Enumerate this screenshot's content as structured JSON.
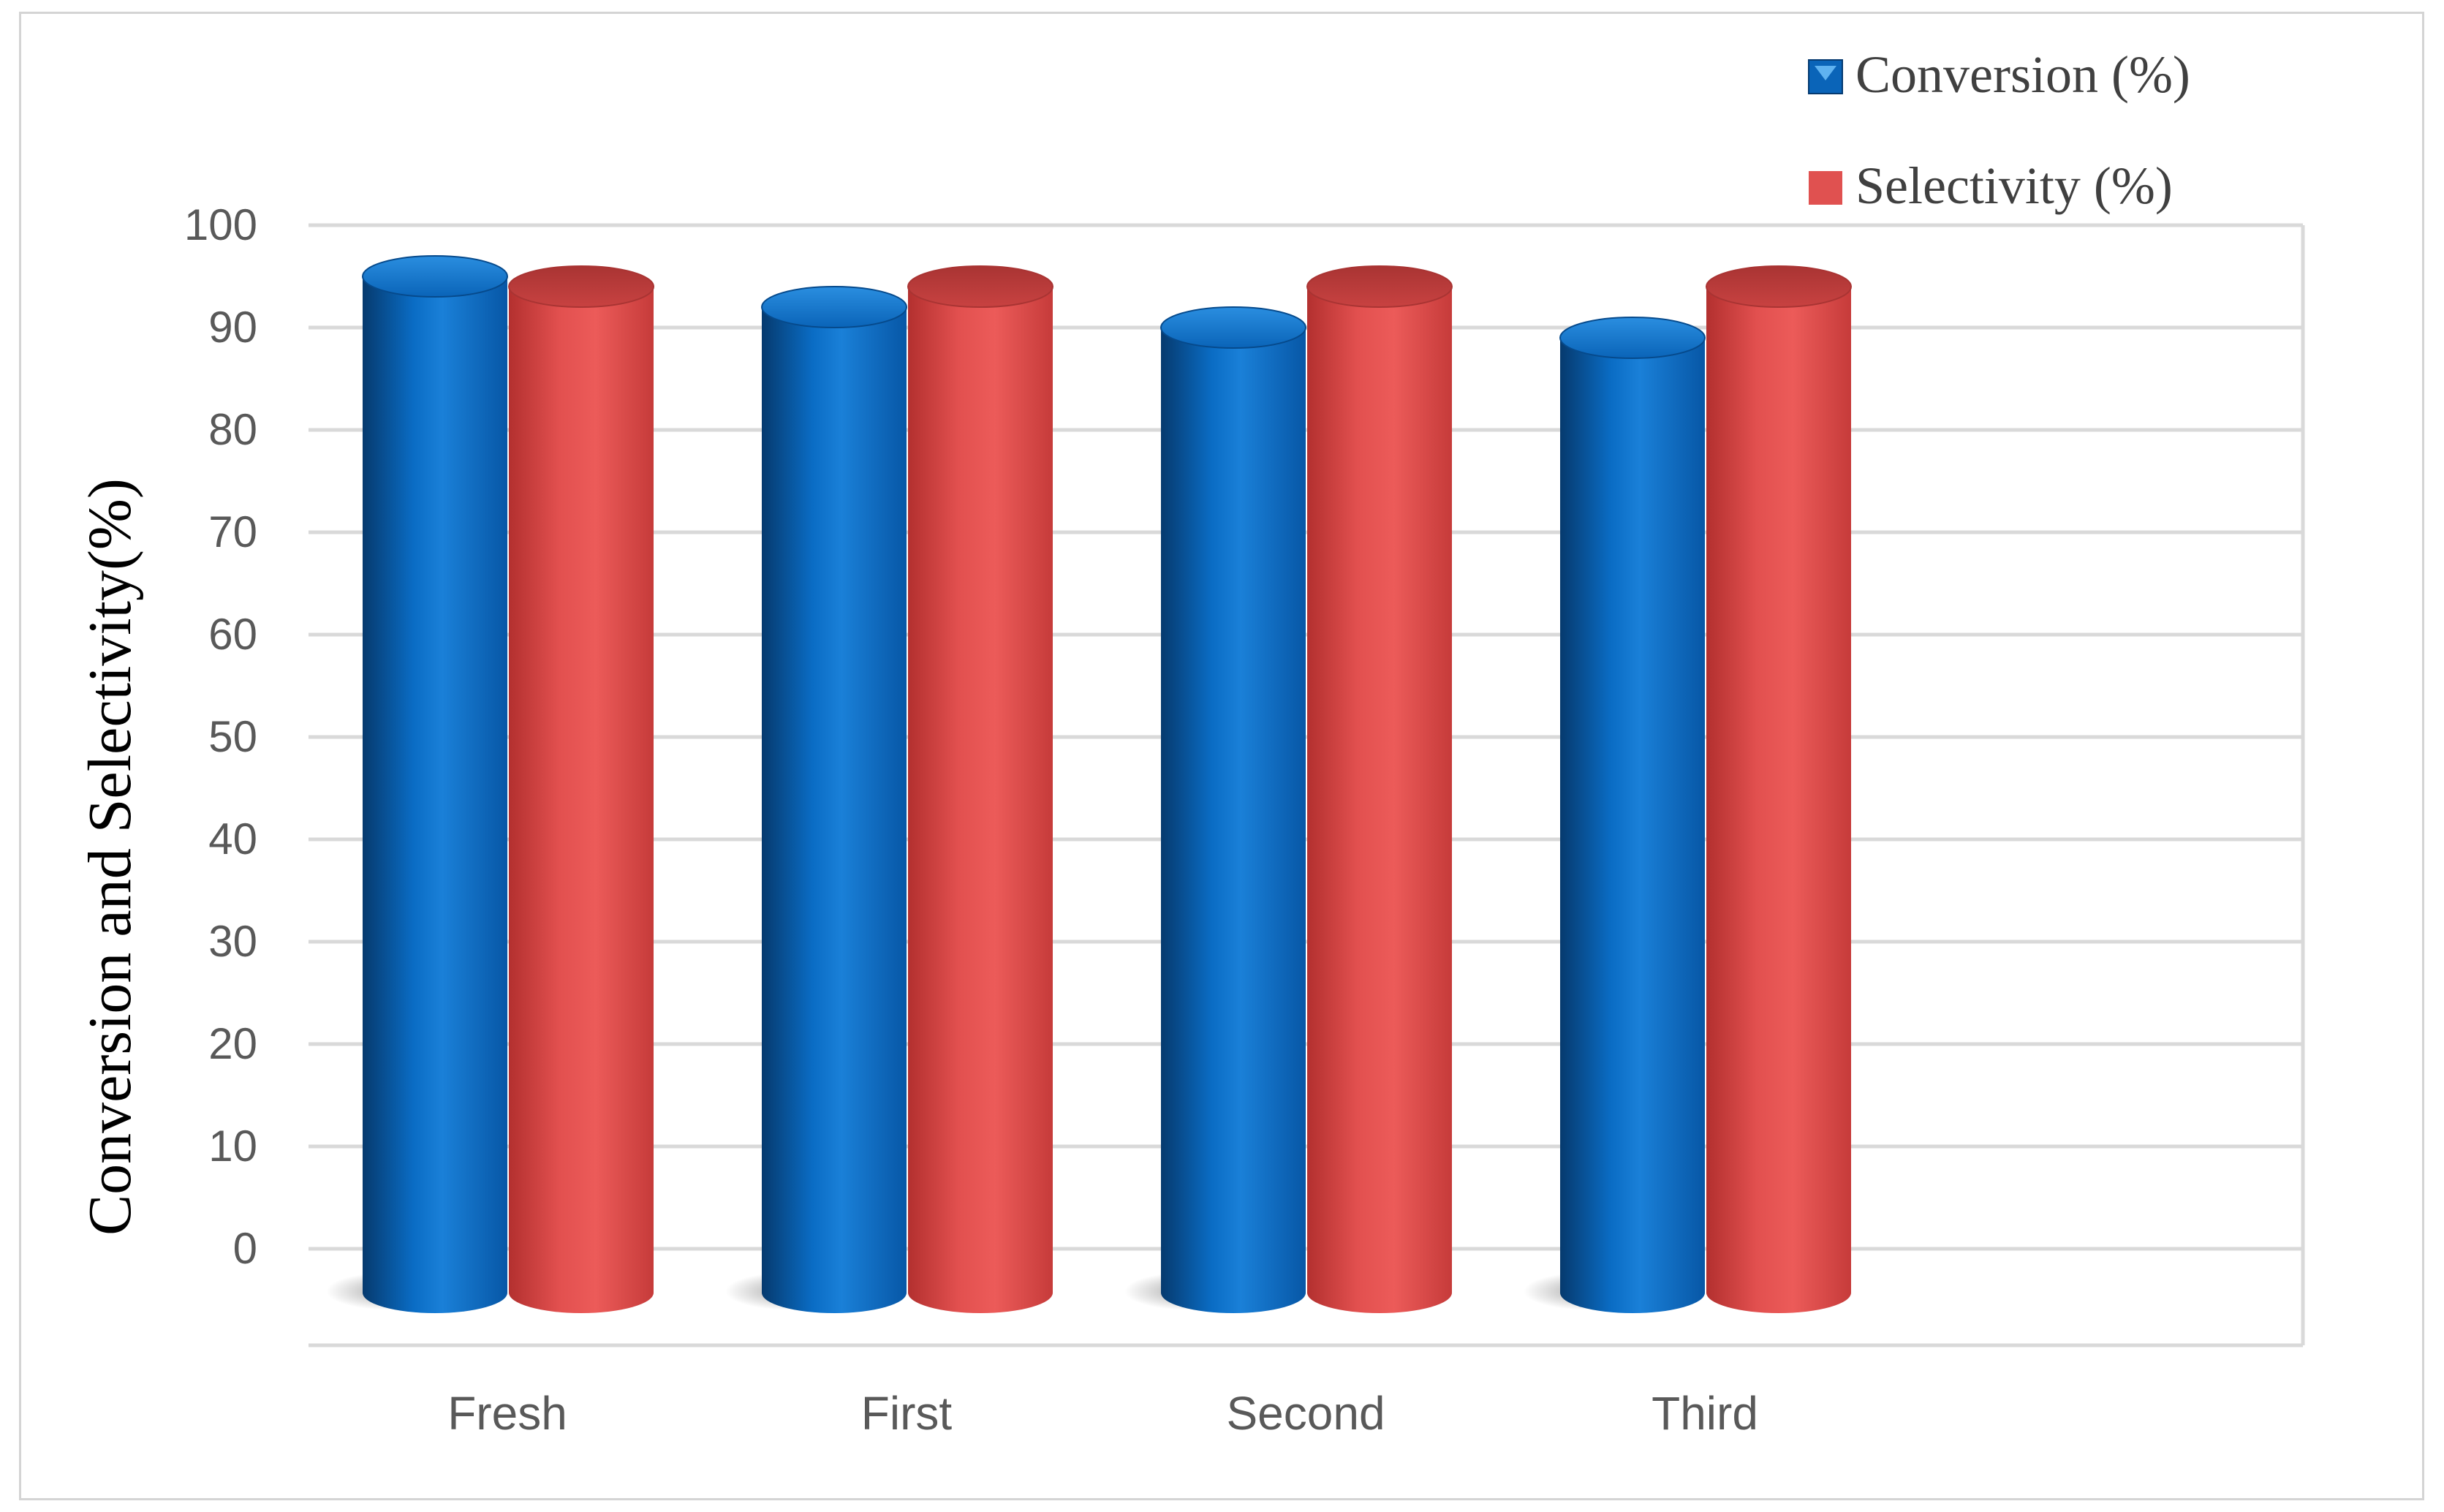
{
  "chart_data": {
    "type": "bar",
    "style": "3d-cylinder",
    "categories": [
      "Fresh",
      "First",
      "Second",
      "Third"
    ],
    "series": [
      {
        "name": "Conversion (%)",
        "values": [
          95,
          92,
          90,
          89
        ],
        "color": "#0070c0"
      },
      {
        "name": "Selectivity (%)",
        "values": [
          94,
          94,
          94,
          94
        ],
        "color": "#e05150"
      }
    ],
    "ylabel": "Conversion and Selectivity(%)",
    "xlabel": "",
    "title": "",
    "ylim": [
      0,
      100
    ],
    "yticks": [
      0,
      10,
      20,
      30,
      40,
      50,
      60,
      70,
      80,
      90,
      100
    ],
    "grid": true,
    "legend_position": "top-right"
  }
}
